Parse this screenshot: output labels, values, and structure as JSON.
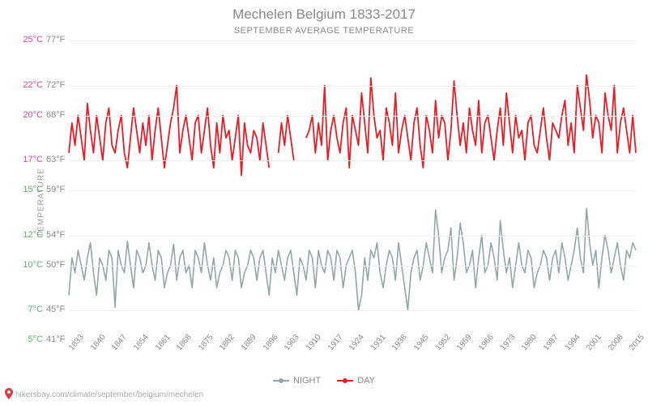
{
  "title": "Mechelen Belgium 1833-2017",
  "subtitle": "SEPTEMBER AVERAGE TEMPERATURE",
  "y_axis_label": "TEMPERATURE",
  "source_url": "hikersbay.com/climate/september/belgium/mechelen",
  "chart": {
    "type": "line",
    "background_color": "#ffffff",
    "grid_color": "#f0f0f0",
    "ylim_c": [
      5,
      25
    ],
    "x_years": [
      1833,
      1840,
      1847,
      1854,
      1861,
      1868,
      1875,
      1882,
      1889,
      1896,
      1903,
      1910,
      1917,
      1924,
      1931,
      1938,
      1945,
      1952,
      1959,
      1966,
      1973,
      1980,
      1987,
      1994,
      2001,
      2008,
      2015
    ],
    "y_ticks": [
      {
        "c": "5°C",
        "f": "41°F",
        "color": "#5ab46a"
      },
      {
        "c": "7°C",
        "f": "45°F",
        "color": "#5ab46a"
      },
      {
        "c": "10°C",
        "f": "50°F",
        "color": "#5ab46a"
      },
      {
        "c": "12°C",
        "f": "54°F",
        "color": "#5ab46a"
      },
      {
        "c": "15°C",
        "f": "59°F",
        "color": "#5ab46a"
      },
      {
        "c": "17°C",
        "f": "63°F",
        "color": "#d946a0"
      },
      {
        "c": "20°C",
        "f": "68°F",
        "color": "#d946a0"
      },
      {
        "c": "22°C",
        "f": "72°F",
        "color": "#d946a0"
      },
      {
        "c": "25°C",
        "f": "77°F",
        "color": "#d946a0"
      }
    ],
    "series": {
      "night": {
        "label": "NIGHT",
        "color": "#8fa8a8",
        "line_width": 1.6,
        "marker": "circle",
        "gap_years": [],
        "data": [
          8.0,
          10.5,
          9.5,
          11.0,
          10.0,
          9.0,
          10.5,
          11.5,
          9.5,
          8.0,
          10.5,
          10.0,
          9.0,
          11.0,
          10.5,
          7.2,
          11.0,
          10.0,
          9.5,
          11.6,
          10.0,
          8.5,
          11.0,
          10.5,
          9.5,
          10.0,
          11.5,
          10.0,
          9.0,
          11.0,
          10.5,
          8.5,
          9.5,
          10.0,
          11.4,
          9.0,
          10.5,
          11.0,
          9.5,
          10.0,
          8.5,
          11.0,
          10.5,
          9.5,
          11.5,
          10.0,
          9.0,
          10.5,
          8.5,
          9.5,
          10.0,
          11.0,
          10.5,
          9.0,
          11.0,
          10.5,
          8.5,
          9.5,
          10.0,
          11.0,
          10.5,
          9.0,
          10.5,
          11.0,
          9.5,
          8.0,
          10.5,
          9.5,
          11.0,
          10.0,
          9.0,
          10.5,
          11.0,
          9.5,
          8.0,
          10.5,
          10.0,
          9.0,
          11.0,
          10.5,
          8.5,
          11.0,
          10.0,
          9.5,
          11.0,
          10.5,
          9.0,
          11.0,
          10.5,
          8.5,
          10.0,
          10.5,
          11.0,
          9.5,
          7.0,
          8.0,
          10.5,
          9.0,
          11.0,
          10.5,
          11.5,
          9.5,
          8.5,
          10.0,
          11.0,
          10.5,
          9.0,
          11.5,
          10.0,
          8.5,
          7.0,
          9.5,
          10.5,
          11.0,
          9.0,
          10.0,
          11.5,
          10.5,
          9.5,
          13.7,
          12.0,
          9.5,
          10.5,
          11.0,
          12.5,
          9.0,
          10.5,
          12.8,
          11.5,
          9.5,
          10.0,
          11.0,
          8.5,
          10.5,
          12.0,
          9.5,
          10.0,
          11.5,
          10.5,
          9.0,
          13.0,
          11.0,
          9.5,
          10.5,
          8.5,
          10.0,
          11.5,
          10.0,
          9.5,
          11.0,
          10.5,
          8.5,
          9.5,
          10.0,
          11.0,
          10.5,
          9.0,
          10.5,
          11.0,
          9.5,
          11.5,
          10.5,
          9.0,
          10.0,
          11.0,
          12.5,
          10.5,
          9.5,
          13.8,
          11.5,
          10.0,
          11.0,
          8.5,
          10.5,
          12.0,
          11.0,
          9.5,
          10.5,
          11.5,
          10.0,
          9.0,
          11.0,
          10.5,
          11.5,
          11.0
        ]
      },
      "day": {
        "label": "DAY",
        "color": "#eb1c24",
        "line_width": 1.8,
        "marker": "circle",
        "gap_years": [
          1899,
          1900,
          1907,
          1908,
          1909
        ],
        "data": [
          17.5,
          19.5,
          18.0,
          20.0,
          18.5,
          17.0,
          20.8,
          19.0,
          17.5,
          20.0,
          18.5,
          17.0,
          19.5,
          20.5,
          18.0,
          17.5,
          19.0,
          20.0,
          17.5,
          16.5,
          18.5,
          20.5,
          19.0,
          17.5,
          19.5,
          18.0,
          20.0,
          17.0,
          19.0,
          20.5,
          18.5,
          16.5,
          18.0,
          19.5,
          20.5,
          22.0,
          17.5,
          19.0,
          20.0,
          18.5,
          17.0,
          19.5,
          20.0,
          17.5,
          19.0,
          20.5,
          18.0,
          16.5,
          19.5,
          17.5,
          20.0,
          18.5,
          19.0,
          17.0,
          18.5,
          20.0,
          16.0,
          19.5,
          18.0,
          17.5,
          19.0,
          18.5,
          17.0,
          19.5,
          18.0,
          16.5,
          null,
          null,
          17.5,
          19.5,
          18.0,
          20.0,
          18.5,
          17.0,
          null,
          null,
          null,
          18.5,
          19.0,
          20.0,
          17.5,
          19.5,
          18.0,
          22.0,
          17.0,
          19.0,
          20.0,
          18.5,
          17.5,
          19.5,
          20.5,
          16.5,
          20.0,
          19.0,
          18.0,
          21.5,
          19.5,
          17.5,
          22.5,
          20.0,
          18.5,
          19.0,
          17.0,
          20.5,
          19.5,
          18.0,
          21.5,
          17.5,
          19.0,
          20.0,
          18.5,
          17.0,
          19.5,
          20.5,
          18.0,
          16.5,
          20.0,
          19.0,
          17.5,
          21.0,
          18.5,
          20.0,
          19.5,
          17.0,
          19.0,
          22.3,
          20.0,
          18.0,
          19.5,
          17.5,
          20.5,
          19.0,
          18.0,
          21.0,
          17.5,
          19.5,
          20.0,
          18.5,
          17.0,
          19.0,
          20.5,
          18.0,
          21.5,
          19.5,
          17.5,
          20.0,
          18.5,
          19.0,
          17.0,
          19.5,
          20.0,
          18.0,
          17.5,
          19.0,
          20.5,
          18.5,
          17.0,
          19.5,
          19.0,
          18.5,
          20.0,
          21.0,
          18.0,
          19.5,
          17.5,
          22.0,
          20.5,
          19.0,
          22.7,
          21.0,
          18.5,
          20.0,
          19.5,
          17.5,
          21.5,
          20.0,
          19.0,
          22.0,
          17.5,
          19.5,
          20.5,
          19.0,
          17.5,
          20.0,
          17.5
        ]
      }
    },
    "legend": {
      "position": "bottom",
      "items": [
        {
          "key": "night",
          "label": "NIGHT"
        },
        {
          "key": "day",
          "label": "DAY"
        }
      ]
    }
  }
}
